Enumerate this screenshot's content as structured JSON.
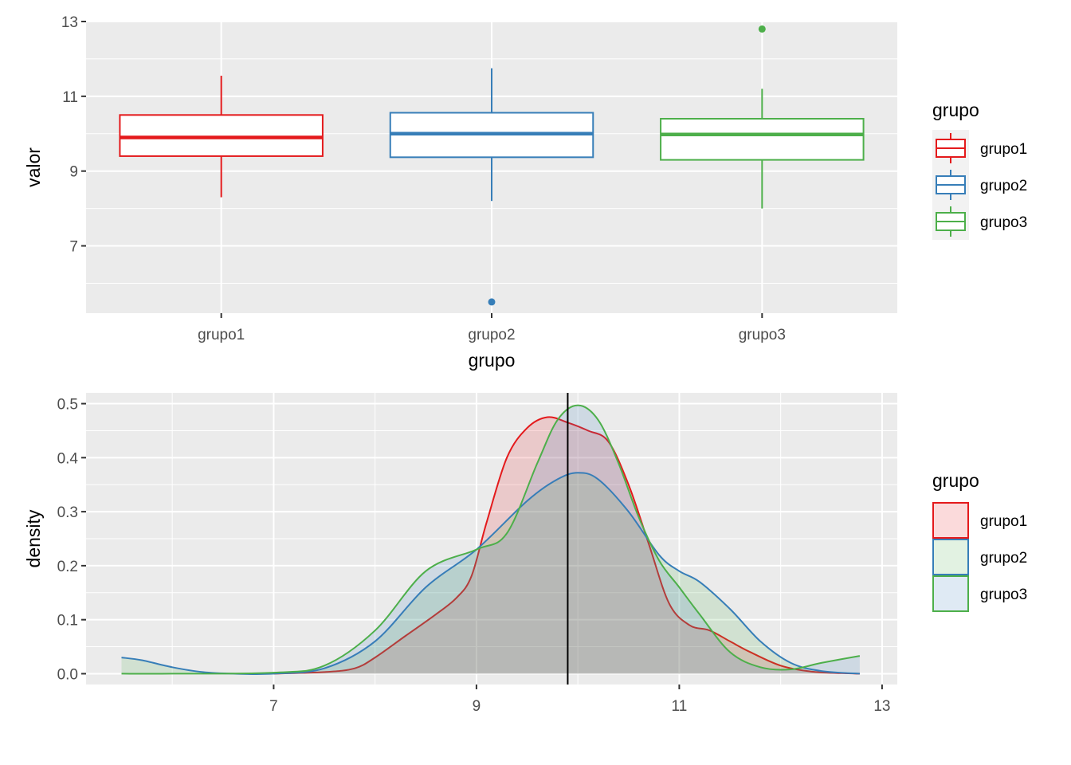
{
  "chart_data": [
    {
      "type": "box",
      "xlabel": "grupo",
      "ylabel": "valor",
      "categories": [
        "grupo1",
        "grupo2",
        "grupo3"
      ],
      "ylim": [
        5.2,
        13.0
      ],
      "yticks": [
        7,
        9,
        11,
        13
      ],
      "grid": true,
      "legend": {
        "title": "grupo",
        "position": "right",
        "entries": [
          "grupo1",
          "grupo2",
          "grupo3"
        ]
      },
      "series": [
        {
          "name": "grupo1",
          "color": "#e41a1c",
          "whisker_low": 8.3,
          "q1": 9.4,
          "median": 9.9,
          "q3": 10.5,
          "whisker_high": 11.55,
          "outliers": []
        },
        {
          "name": "grupo2",
          "color": "#377eb8",
          "whisker_low": 8.2,
          "q1": 9.37,
          "median": 10.0,
          "q3": 10.56,
          "whisker_high": 11.75,
          "outliers": [
            5.5
          ]
        },
        {
          "name": "grupo3",
          "color": "#4daf4a",
          "whisker_low": 8.0,
          "q1": 9.3,
          "median": 9.98,
          "q3": 10.4,
          "whisker_high": 11.2,
          "outliers": [
            12.8
          ]
        }
      ]
    },
    {
      "type": "area",
      "xlabel": "",
      "ylabel": "density",
      "xlim": [
        5.15,
        13.15
      ],
      "ylim": [
        -0.02,
        0.52
      ],
      "xticks": [
        7,
        9,
        11,
        13
      ],
      "yticks": [
        0.0,
        0.1,
        0.2,
        0.3,
        0.4,
        0.5
      ],
      "ytick_labels": [
        "0.0",
        "0.1",
        "0.2",
        "0.3",
        "0.4",
        "0.5"
      ],
      "grid": true,
      "vline": 9.9,
      "legend": {
        "title": "grupo",
        "position": "right",
        "entries": [
          "grupo1",
          "grupo2",
          "grupo3"
        ],
        "swatch_fill_colors": [
          "#e41a1c",
          "#4daf4a",
          "#377eb8"
        ]
      },
      "series": [
        {
          "name": "grupo1",
          "color": "#e41a1c",
          "x": [
            7.0,
            7.5,
            7.8,
            8.0,
            8.3,
            8.6,
            8.8,
            8.95,
            9.1,
            9.3,
            9.5,
            9.7,
            9.9,
            10.1,
            10.3,
            10.5,
            10.7,
            10.9,
            11.1,
            11.3,
            11.5,
            11.7,
            12.0,
            12.3,
            12.6,
            12.78
          ],
          "y": [
            0.0,
            0.003,
            0.01,
            0.03,
            0.07,
            0.11,
            0.14,
            0.18,
            0.28,
            0.4,
            0.455,
            0.475,
            0.465,
            0.45,
            0.43,
            0.35,
            0.24,
            0.13,
            0.09,
            0.08,
            0.06,
            0.04,
            0.015,
            0.004,
            0.001,
            0.0
          ]
        },
        {
          "name": "grupo2",
          "color": "#377eb8",
          "x": [
            5.5,
            5.7,
            6.0,
            6.3,
            6.6,
            7.0,
            7.5,
            8.0,
            8.5,
            9.0,
            9.5,
            9.8,
            10.0,
            10.2,
            10.5,
            10.8,
            11.0,
            11.2,
            11.5,
            11.8,
            12.1,
            12.4,
            12.78
          ],
          "y": [
            0.03,
            0.025,
            0.012,
            0.003,
            0.0,
            0.0,
            0.01,
            0.06,
            0.16,
            0.23,
            0.32,
            0.36,
            0.372,
            0.36,
            0.3,
            0.22,
            0.19,
            0.17,
            0.12,
            0.06,
            0.02,
            0.005,
            0.0
          ]
        },
        {
          "name": "grupo3",
          "color": "#4daf4a",
          "x": [
            5.5,
            6.0,
            7.0,
            7.5,
            8.0,
            8.5,
            9.0,
            9.3,
            9.6,
            9.8,
            10.0,
            10.2,
            10.4,
            10.6,
            10.8,
            11.0,
            11.2,
            11.5,
            11.8,
            12.1,
            12.4,
            12.78
          ],
          "y": [
            0.0,
            0.0,
            0.002,
            0.015,
            0.08,
            0.19,
            0.23,
            0.26,
            0.39,
            0.47,
            0.497,
            0.47,
            0.39,
            0.29,
            0.21,
            0.16,
            0.11,
            0.04,
            0.012,
            0.008,
            0.02,
            0.033
          ]
        }
      ]
    }
  ]
}
